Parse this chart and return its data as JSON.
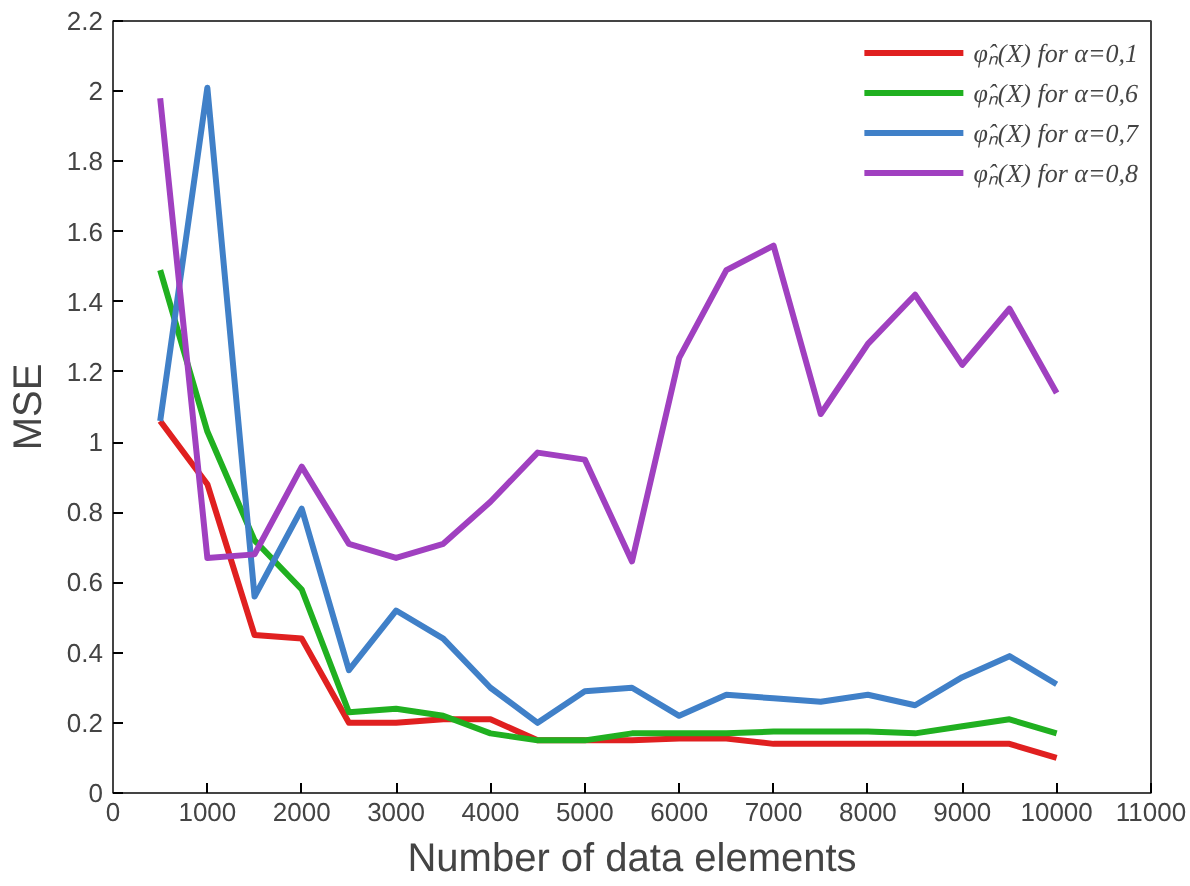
{
  "chart_data": {
    "type": "line",
    "xlabel": "Number of data elements",
    "ylabel": "MSE",
    "x": [
      500,
      1000,
      1500,
      2000,
      2500,
      3000,
      3500,
      4000,
      4500,
      5000,
      5500,
      6000,
      6500,
      7000,
      7500,
      8000,
      8500,
      9000,
      9500,
      10000
    ],
    "series": [
      {
        "name": "φ̂ₙ(X) for α=0,1",
        "color": "#e02020",
        "values": [
          1.06,
          0.88,
          0.45,
          0.44,
          0.2,
          0.2,
          0.21,
          0.21,
          0.15,
          0.15,
          0.15,
          0.155,
          0.155,
          0.14,
          0.14,
          0.14,
          0.14,
          0.14,
          0.14,
          0.1
        ]
      },
      {
        "name": "φ̂ₙ(X) for α=0,6",
        "color": "#20b020",
        "values": [
          1.49,
          1.03,
          0.72,
          0.58,
          0.23,
          0.24,
          0.22,
          0.17,
          0.15,
          0.15,
          0.17,
          0.17,
          0.17,
          0.175,
          0.175,
          0.175,
          0.17,
          0.19,
          0.21,
          0.17
        ]
      },
      {
        "name": "φ̂ₙ(X) for α=0,7",
        "color": "#4080c8",
        "values": [
          1.06,
          2.01,
          0.56,
          0.81,
          0.35,
          0.52,
          0.44,
          0.3,
          0.2,
          0.29,
          0.3,
          0.22,
          0.28,
          0.27,
          0.26,
          0.28,
          0.25,
          0.33,
          0.39,
          0.31
        ]
      },
      {
        "name": "φ̂ₙ(X) for α=0,8",
        "color": "#a040c0",
        "values": [
          1.98,
          0.67,
          0.68,
          0.93,
          0.71,
          0.67,
          0.71,
          0.83,
          0.97,
          0.95,
          0.66,
          1.24,
          1.49,
          1.56,
          1.08,
          1.28,
          1.42,
          1.22,
          1.38,
          1.14
        ]
      }
    ],
    "xlim": [
      0,
      11000
    ],
    "xticks": [
      0,
      1000,
      2000,
      3000,
      4000,
      5000,
      6000,
      7000,
      8000,
      9000,
      10000,
      11000
    ],
    "ylim": [
      0,
      2.2
    ],
    "yticks": [
      0,
      0.2,
      0.4,
      0.6,
      0.8,
      1,
      1.2,
      1.4,
      1.6,
      1.8,
      2,
      2.2
    ],
    "grid": false,
    "legend": "top right",
    "marker": "none",
    "line_style": "solid"
  }
}
